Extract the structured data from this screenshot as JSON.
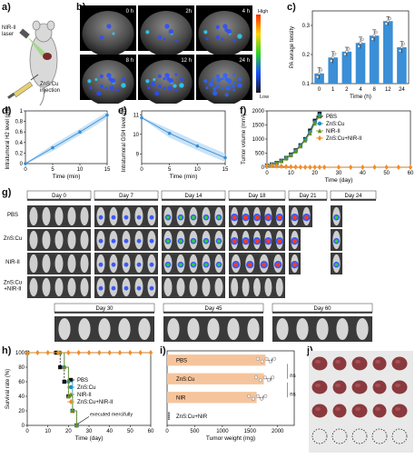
{
  "panels": {
    "a": {
      "label": "a)",
      "laser_text": "NIR-II\nlaser",
      "injection_text": "ZnS:Cu\ninjection"
    },
    "b": {
      "label": "b)",
      "times": [
        "0 h",
        "2h",
        "4 h",
        "8 h",
        "12 h",
        "24 h"
      ],
      "scale_high": "High",
      "scale_low": "Low"
    },
    "g": {
      "label": "g)",
      "days_top": [
        "Day 0",
        "Day 7",
        "Day 14",
        "Day 18",
        "Day 21",
        "Day 24"
      ],
      "groups": [
        "PBS",
        "ZnS:Cu",
        "NIR-II",
        "ZnS:Cu\n+NIR-II"
      ],
      "days_bottom": [
        "Day 30",
        "Day 45",
        "Day 60"
      ]
    },
    "j": {
      "label": "j)"
    }
  },
  "chart_data": [
    {
      "id": "c",
      "label": "c)",
      "type": "bar",
      "categories": [
        "0",
        "1",
        "2",
        "4",
        "8",
        "12",
        "24"
      ],
      "values": [
        0.135,
        0.19,
        0.21,
        0.24,
        0.265,
        0.315,
        0.225
      ],
      "errors": [
        0.02,
        0.02,
        0.015,
        0.02,
        0.02,
        0.015,
        0.02
      ],
      "xlabel": "Time (h)",
      "ylabel": "PA avrage tensity",
      "ylim": [
        0.1,
        0.35
      ],
      "yticks": [
        0.1,
        0.2,
        0.3
      ],
      "color": "#3b8fd6"
    },
    {
      "id": "d",
      "label": "d)",
      "type": "line",
      "x": [
        0,
        5,
        10,
        15
      ],
      "values": [
        0,
        0.3,
        0.6,
        0.92
      ],
      "xlabel": "Time (min)",
      "ylabel": "Intratumoral H2 level (mM)",
      "xlim": [
        0,
        15
      ],
      "ylim": [
        0,
        1.0
      ],
      "xticks": [
        0,
        5,
        10,
        15
      ],
      "yticks": [
        0,
        0.2,
        0.4,
        0.6,
        0.8,
        1.0
      ],
      "color": "#3b8fd6"
    },
    {
      "id": "e",
      "label": "e)",
      "type": "line",
      "x": [
        0,
        5,
        10,
        15
      ],
      "values": [
        10.85,
        10.05,
        9.4,
        8.8
      ],
      "xlabel": "Time (min)",
      "ylabel": "Intratumoral GSH level (mM)",
      "xlim": [
        0,
        15
      ],
      "ylim": [
        8.5,
        11.2
      ],
      "xticks": [
        0,
        5,
        10,
        15
      ],
      "yticks": [
        9,
        10,
        11
      ],
      "color": "#3b8fd6"
    },
    {
      "id": "f",
      "label": "f)",
      "type": "line",
      "xlabel": "Time (day)",
      "ylabel": "Tumor volume (mm³)",
      "xlim": [
        0,
        60
      ],
      "ylim": [
        0,
        2000
      ],
      "xticks": [
        0,
        10,
        20,
        30,
        40,
        50,
        60
      ],
      "yticks": [
        0,
        500,
        1000,
        1500,
        2000
      ],
      "series": [
        {
          "name": "PBS",
          "color": "#111111",
          "marker": "square",
          "x": [
            0,
            2,
            4,
            6,
            8,
            10,
            12,
            14,
            16,
            18,
            20,
            22
          ],
          "values": [
            60,
            100,
            150,
            230,
            330,
            450,
            600,
            780,
            1000,
            1300,
            1650,
            1900
          ]
        },
        {
          "name": "ZnS:Cu",
          "color": "#1f8fbf",
          "marker": "circle",
          "x": [
            0,
            2,
            4,
            6,
            8,
            10,
            12,
            14,
            16,
            18,
            20,
            22
          ],
          "values": [
            60,
            95,
            140,
            220,
            320,
            430,
            580,
            760,
            980,
            1250,
            1600,
            1850
          ]
        },
        {
          "name": "NIR-II",
          "color": "#6a8f1f",
          "marker": "triangle",
          "x": [
            0,
            2,
            4,
            6,
            8,
            10,
            12,
            14,
            16,
            18,
            20,
            22
          ],
          "values": [
            60,
            95,
            145,
            215,
            310,
            420,
            560,
            740,
            950,
            1200,
            1550,
            1820
          ]
        },
        {
          "name": "ZnS:Cu+NIR-II",
          "color": "#f28c28",
          "marker": "diamond",
          "x": [
            0,
            2,
            4,
            6,
            8,
            10,
            12,
            14,
            16,
            18,
            20,
            22,
            24,
            30,
            35,
            40,
            45,
            50,
            55,
            60
          ],
          "values": [
            60,
            55,
            45,
            35,
            25,
            15,
            10,
            5,
            0,
            0,
            0,
            0,
            0,
            0,
            0,
            0,
            0,
            0,
            0,
            0
          ]
        }
      ]
    },
    {
      "id": "h",
      "label": "h)",
      "type": "line",
      "xlabel": "Time (day)",
      "ylabel": "Survival rate (%)",
      "xlim": [
        0,
        60
      ],
      "ylim": [
        0,
        100
      ],
      "xticks": [
        0,
        10,
        20,
        30,
        40,
        50,
        60
      ],
      "yticks": [
        0,
        20,
        40,
        60,
        80,
        100
      ],
      "annotation": "executed mercifully",
      "series": [
        {
          "name": "PBS",
          "color": "#111111",
          "marker": "square",
          "dash": true,
          "x": [
            0,
            14,
            16,
            18,
            20,
            22,
            24
          ],
          "values": [
            100,
            100,
            80,
            60,
            40,
            20,
            0
          ]
        },
        {
          "name": "ZnS:Cu",
          "color": "#1f8fbf",
          "marker": "circle",
          "dash": false,
          "x": [
            0,
            16,
            18,
            20,
            22,
            24
          ],
          "values": [
            100,
            100,
            80,
            60,
            20,
            0
          ]
        },
        {
          "name": "NIR-II",
          "color": "#6a8f1f",
          "marker": "triangle",
          "dash": false,
          "x": [
            0,
            16,
            18,
            20,
            22,
            24
          ],
          "values": [
            100,
            100,
            80,
            40,
            20,
            0
          ]
        },
        {
          "name": "ZnS:Cu+NIR-II",
          "color": "#f28c28",
          "marker": "diamond",
          "dash": false,
          "x": [
            0,
            5,
            10,
            15,
            20,
            25,
            30,
            35,
            40,
            45,
            50,
            55,
            60
          ],
          "values": [
            100,
            100,
            100,
            100,
            100,
            100,
            100,
            100,
            100,
            100,
            100,
            100,
            100
          ]
        }
      ]
    },
    {
      "id": "i",
      "label": "i)",
      "type": "bar",
      "orientation": "horizontal",
      "categories": [
        "PBS",
        "ZnS:Cu",
        "NIR",
        "ZnS:Cu+NIR"
      ],
      "values": [
        1780,
        1750,
        1620,
        0
      ],
      "errors": [
        120,
        130,
        120,
        0
      ],
      "significance": [
        "",
        "ns",
        "ns",
        ""
      ],
      "xlabel": "Tumor weight (mg)",
      "xlim": [
        0,
        2300
      ],
      "xticks": [
        0,
        500,
        1000,
        1500,
        2000
      ],
      "color": "#f6c49c"
    }
  ]
}
